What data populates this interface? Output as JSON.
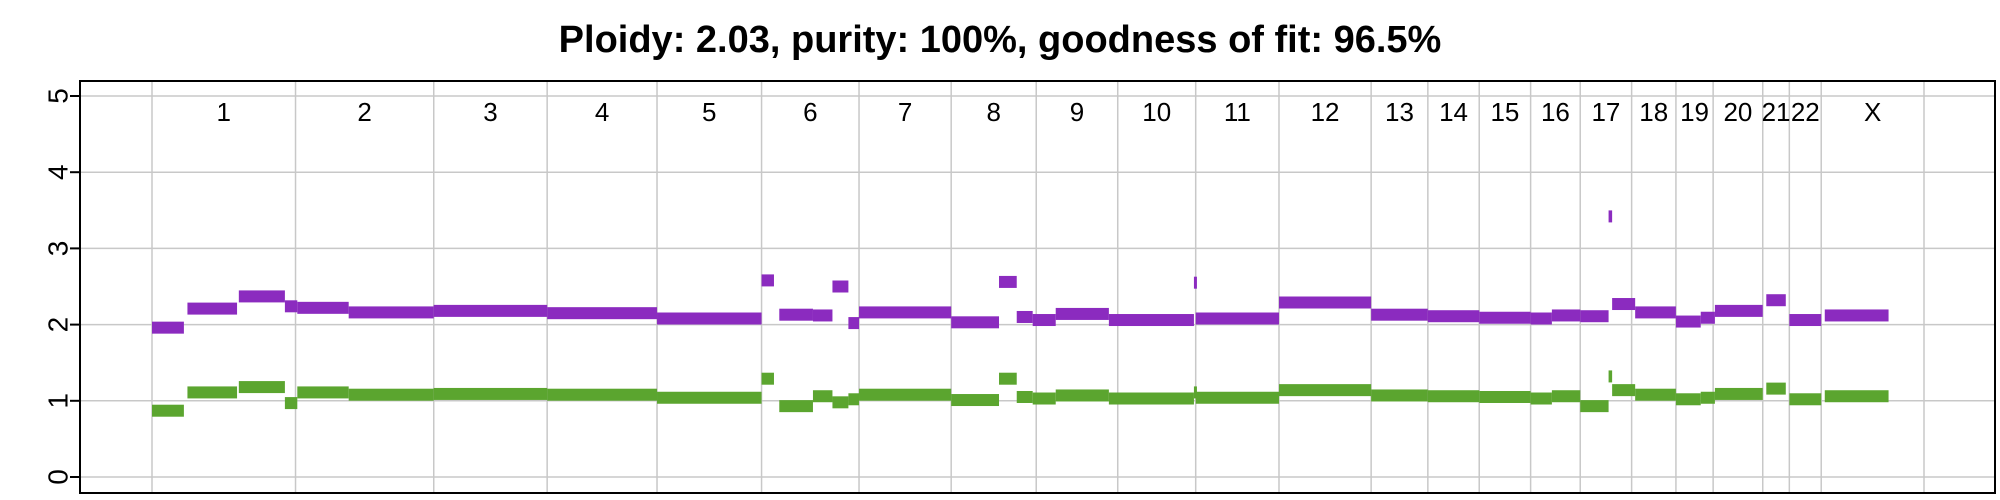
{
  "chart_data": {
    "type": "scatter",
    "title": "Ploidy: 2.03, purity: 100%, goodness of fit: 96.5%",
    "xlabel": "",
    "ylabel": "",
    "ylim": [
      0,
      5
    ],
    "yticks": [
      0,
      1,
      2,
      3,
      4,
      5
    ],
    "grid": true,
    "colors": {
      "total": "#8B2BBF",
      "minor": "#5BA52F",
      "grid": "#c8c8c8",
      "frame": "#000000"
    },
    "chromosomes": [
      {
        "label": "1",
        "start": 0.0,
        "end": 0.081
      },
      {
        "label": "2",
        "start": 0.081,
        "end": 0.159
      },
      {
        "label": "3",
        "start": 0.159,
        "end": 0.223
      },
      {
        "label": "4",
        "start": 0.223,
        "end": 0.285
      },
      {
        "label": "5",
        "start": 0.285,
        "end": 0.344
      },
      {
        "label": "6",
        "start": 0.344,
        "end": 0.399
      },
      {
        "label": "7",
        "start": 0.399,
        "end": 0.451
      },
      {
        "label": "8",
        "start": 0.451,
        "end": 0.499
      },
      {
        "label": "9",
        "start": 0.499,
        "end": 0.545
      },
      {
        "label": "10",
        "start": 0.545,
        "end": 0.589
      },
      {
        "label": "11",
        "start": 0.589,
        "end": 0.636
      },
      {
        "label": "12",
        "start": 0.636,
        "end": 0.688
      },
      {
        "label": "13",
        "start": 0.688,
        "end": 0.72
      },
      {
        "label": "14",
        "start": 0.72,
        "end": 0.749
      },
      {
        "label": "15",
        "start": 0.749,
        "end": 0.778
      },
      {
        "label": "16",
        "start": 0.778,
        "end": 0.806
      },
      {
        "label": "17",
        "start": 0.806,
        "end": 0.835
      },
      {
        "label": "18",
        "start": 0.835,
        "end": 0.86
      },
      {
        "label": "19",
        "start": 0.86,
        "end": 0.881
      },
      {
        "label": "20",
        "start": 0.881,
        "end": 0.909
      },
      {
        "label": "21",
        "start": 0.909,
        "end": 0.924
      },
      {
        "label": "22",
        "start": 0.924,
        "end": 0.942
      },
      {
        "label": "X",
        "start": 0.942,
        "end": 1.0
      }
    ],
    "series": [
      {
        "key": "total",
        "segments": [
          {
            "start": 0.0,
            "end": 0.018,
            "value": 1.96
          },
          {
            "start": 0.02,
            "end": 0.048,
            "value": 2.21
          },
          {
            "start": 0.049,
            "end": 0.075,
            "value": 2.37
          },
          {
            "start": 0.075,
            "end": 0.082,
            "value": 2.24
          },
          {
            "start": 0.082,
            "end": 0.111,
            "value": 2.22
          },
          {
            "start": 0.111,
            "end": 0.159,
            "value": 2.16
          },
          {
            "start": 0.159,
            "end": 0.223,
            "value": 2.18
          },
          {
            "start": 0.223,
            "end": 0.285,
            "value": 2.15
          },
          {
            "start": 0.285,
            "end": 0.344,
            "value": 2.08
          },
          {
            "start": 0.344,
            "end": 0.351,
            "value": 2.58
          },
          {
            "start": 0.354,
            "end": 0.373,
            "value": 2.13
          },
          {
            "start": 0.373,
            "end": 0.384,
            "value": 2.12
          },
          {
            "start": 0.384,
            "end": 0.393,
            "value": 2.5
          },
          {
            "start": 0.393,
            "end": 0.399,
            "value": 2.02
          },
          {
            "start": 0.399,
            "end": 0.451,
            "value": 2.16
          },
          {
            "start": 0.451,
            "end": 0.478,
            "value": 2.03
          },
          {
            "start": 0.478,
            "end": 0.488,
            "value": 2.56
          },
          {
            "start": 0.488,
            "end": 0.497,
            "value": 2.1
          },
          {
            "start": 0.497,
            "end": 0.51,
            "value": 2.06
          },
          {
            "start": 0.51,
            "end": 0.54,
            "value": 2.14
          },
          {
            "start": 0.54,
            "end": 0.588,
            "value": 2.06
          },
          {
            "start": 0.588,
            "end": 0.589,
            "value": 2.55
          },
          {
            "start": 0.589,
            "end": 0.636,
            "value": 2.08
          },
          {
            "start": 0.636,
            "end": 0.688,
            "value": 2.29
          },
          {
            "start": 0.688,
            "end": 0.72,
            "value": 2.13
          },
          {
            "start": 0.72,
            "end": 0.749,
            "value": 2.11
          },
          {
            "start": 0.749,
            "end": 0.778,
            "value": 2.09
          },
          {
            "start": 0.778,
            "end": 0.79,
            "value": 2.08
          },
          {
            "start": 0.79,
            "end": 0.806,
            "value": 2.12
          },
          {
            "start": 0.806,
            "end": 0.822,
            "value": 2.11
          },
          {
            "start": 0.822,
            "end": 0.824,
            "value": 3.42
          },
          {
            "start": 0.824,
            "end": 0.837,
            "value": 2.27
          },
          {
            "start": 0.837,
            "end": 0.86,
            "value": 2.16
          },
          {
            "start": 0.86,
            "end": 0.874,
            "value": 2.04
          },
          {
            "start": 0.874,
            "end": 0.882,
            "value": 2.09
          },
          {
            "start": 0.882,
            "end": 0.909,
            "value": 2.18
          },
          {
            "start": 0.911,
            "end": 0.922,
            "value": 2.32
          },
          {
            "start": 0.924,
            "end": 0.942,
            "value": 2.06
          },
          {
            "start": 0.944,
            "end": 0.98,
            "value": 2.12
          }
        ]
      },
      {
        "key": "minor",
        "segments": [
          {
            "start": 0.0,
            "end": 0.018,
            "value": 0.87
          },
          {
            "start": 0.02,
            "end": 0.048,
            "value": 1.11
          },
          {
            "start": 0.049,
            "end": 0.075,
            "value": 1.18
          },
          {
            "start": 0.075,
            "end": 0.082,
            "value": 0.97
          },
          {
            "start": 0.082,
            "end": 0.111,
            "value": 1.11
          },
          {
            "start": 0.111,
            "end": 0.159,
            "value": 1.08
          },
          {
            "start": 0.159,
            "end": 0.223,
            "value": 1.09
          },
          {
            "start": 0.223,
            "end": 0.285,
            "value": 1.08
          },
          {
            "start": 0.285,
            "end": 0.344,
            "value": 1.04
          },
          {
            "start": 0.344,
            "end": 0.351,
            "value": 1.29
          },
          {
            "start": 0.354,
            "end": 0.373,
            "value": 0.93
          },
          {
            "start": 0.373,
            "end": 0.384,
            "value": 1.06
          },
          {
            "start": 0.384,
            "end": 0.393,
            "value": 0.98
          },
          {
            "start": 0.393,
            "end": 0.399,
            "value": 1.02
          },
          {
            "start": 0.399,
            "end": 0.451,
            "value": 1.08
          },
          {
            "start": 0.451,
            "end": 0.478,
            "value": 1.01
          },
          {
            "start": 0.478,
            "end": 0.488,
            "value": 1.29
          },
          {
            "start": 0.488,
            "end": 0.497,
            "value": 1.05
          },
          {
            "start": 0.497,
            "end": 0.51,
            "value": 1.03
          },
          {
            "start": 0.51,
            "end": 0.54,
            "value": 1.07
          },
          {
            "start": 0.54,
            "end": 0.588,
            "value": 1.03
          },
          {
            "start": 0.588,
            "end": 0.589,
            "value": 1.11
          },
          {
            "start": 0.589,
            "end": 0.636,
            "value": 1.04
          },
          {
            "start": 0.636,
            "end": 0.688,
            "value": 1.14
          },
          {
            "start": 0.688,
            "end": 0.72,
            "value": 1.07
          },
          {
            "start": 0.72,
            "end": 0.749,
            "value": 1.06
          },
          {
            "start": 0.749,
            "end": 0.778,
            "value": 1.05
          },
          {
            "start": 0.778,
            "end": 0.79,
            "value": 1.03
          },
          {
            "start": 0.79,
            "end": 0.806,
            "value": 1.06
          },
          {
            "start": 0.806,
            "end": 0.822,
            "value": 0.93
          },
          {
            "start": 0.822,
            "end": 0.824,
            "value": 1.32
          },
          {
            "start": 0.824,
            "end": 0.837,
            "value": 1.14
          },
          {
            "start": 0.837,
            "end": 0.86,
            "value": 1.08
          },
          {
            "start": 0.86,
            "end": 0.874,
            "value": 1.02
          },
          {
            "start": 0.874,
            "end": 0.882,
            "value": 1.04
          },
          {
            "start": 0.882,
            "end": 0.909,
            "value": 1.09
          },
          {
            "start": 0.911,
            "end": 0.922,
            "value": 1.16
          },
          {
            "start": 0.924,
            "end": 0.942,
            "value": 1.02
          },
          {
            "start": 0.944,
            "end": 0.98,
            "value": 1.06
          }
        ]
      }
    ]
  }
}
